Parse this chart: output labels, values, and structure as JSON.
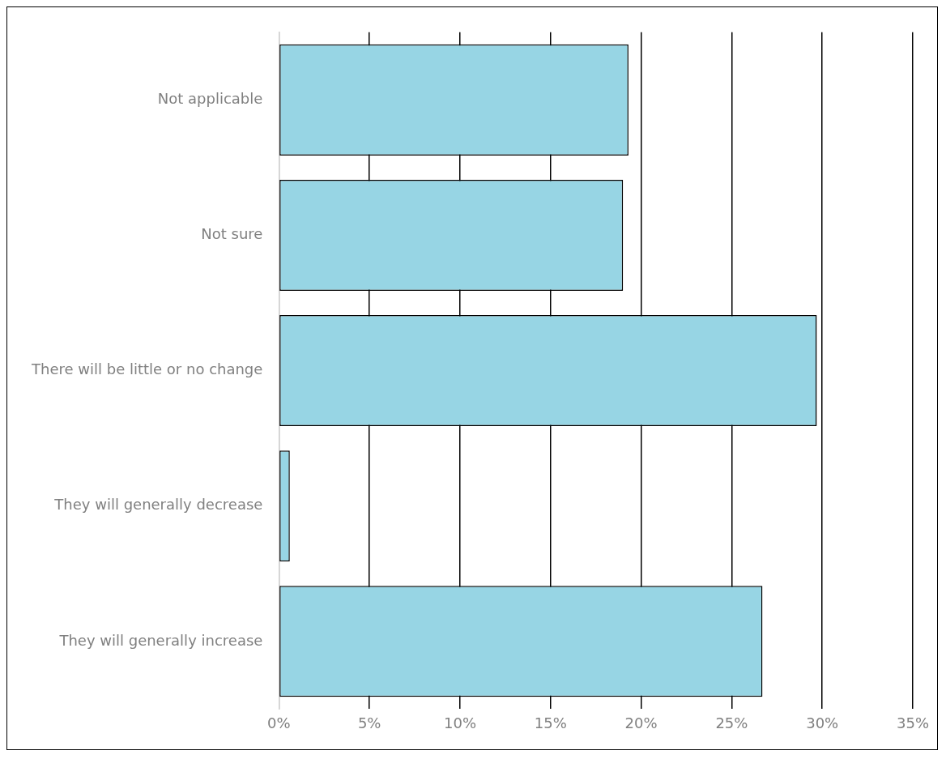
{
  "chart_data": {
    "type": "bar",
    "orientation": "horizontal",
    "categories": [
      "Not applicable",
      "Not sure",
      "There will be little or no change",
      "They will generally decrease",
      "They will generally increase"
    ],
    "values": [
      19.3,
      19.0,
      29.7,
      0.6,
      26.7
    ],
    "color": "#97d5e4",
    "xlim": [
      0,
      35
    ],
    "xticks": [
      {
        "value": 0,
        "label": "0%"
      },
      {
        "value": 5,
        "label": "5%"
      },
      {
        "value": 10,
        "label": "10%"
      },
      {
        "value": 15,
        "label": "15%"
      },
      {
        "value": 20,
        "label": "20%"
      },
      {
        "value": 25,
        "label": "25%"
      },
      {
        "value": 30,
        "label": "30%"
      },
      {
        "value": 35,
        "label": "35%"
      }
    ],
    "grid": "x",
    "legend": false
  }
}
